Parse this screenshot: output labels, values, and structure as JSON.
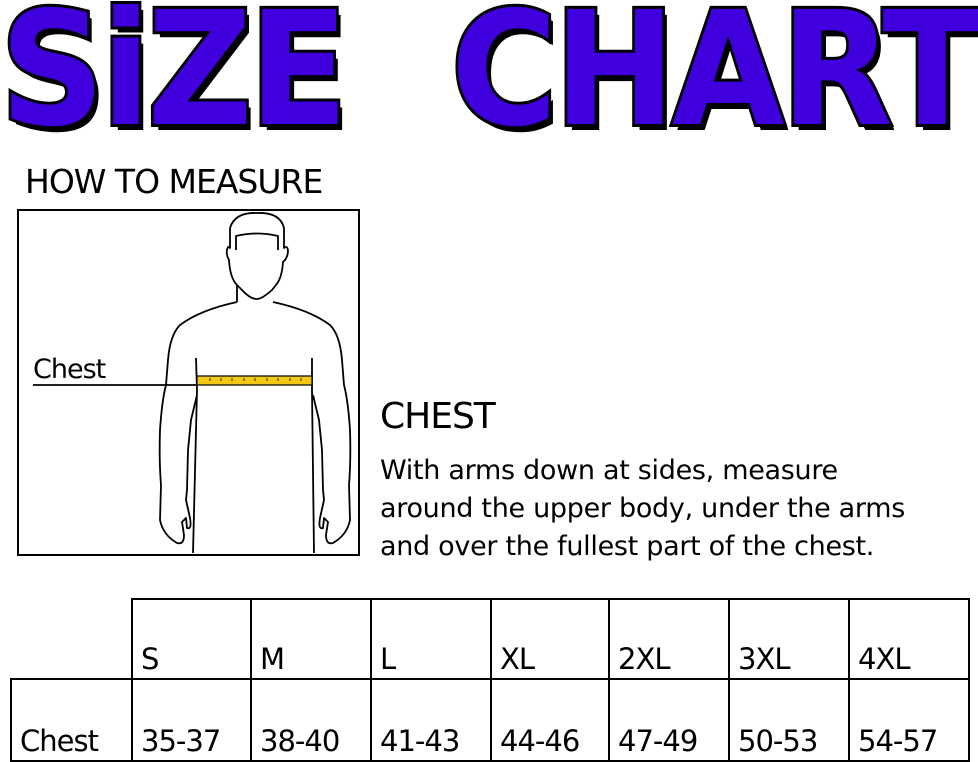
{
  "title": "SiZE CHART",
  "title_words": [
    "SiZE",
    "CHART"
  ],
  "colors": {
    "title_fill": "#3f00dd",
    "tape": "#f2c811"
  },
  "how_to_measure": "HOW TO MEASURE",
  "figure": {
    "label": "Chest"
  },
  "chest": {
    "heading": "CHEST",
    "lines": [
      "With arms down at sides, measure",
      "around the upper body, under the arms",
      "and over the fullest part of the chest."
    ]
  },
  "table": {
    "sizes": [
      "S",
      "M",
      "L",
      "XL",
      "2XL",
      "3XL",
      "4XL"
    ],
    "row_label": "Chest",
    "values": [
      "35-37",
      "38-40",
      "41-43",
      "44-46",
      "47-49",
      "50-53",
      "54-57"
    ]
  }
}
